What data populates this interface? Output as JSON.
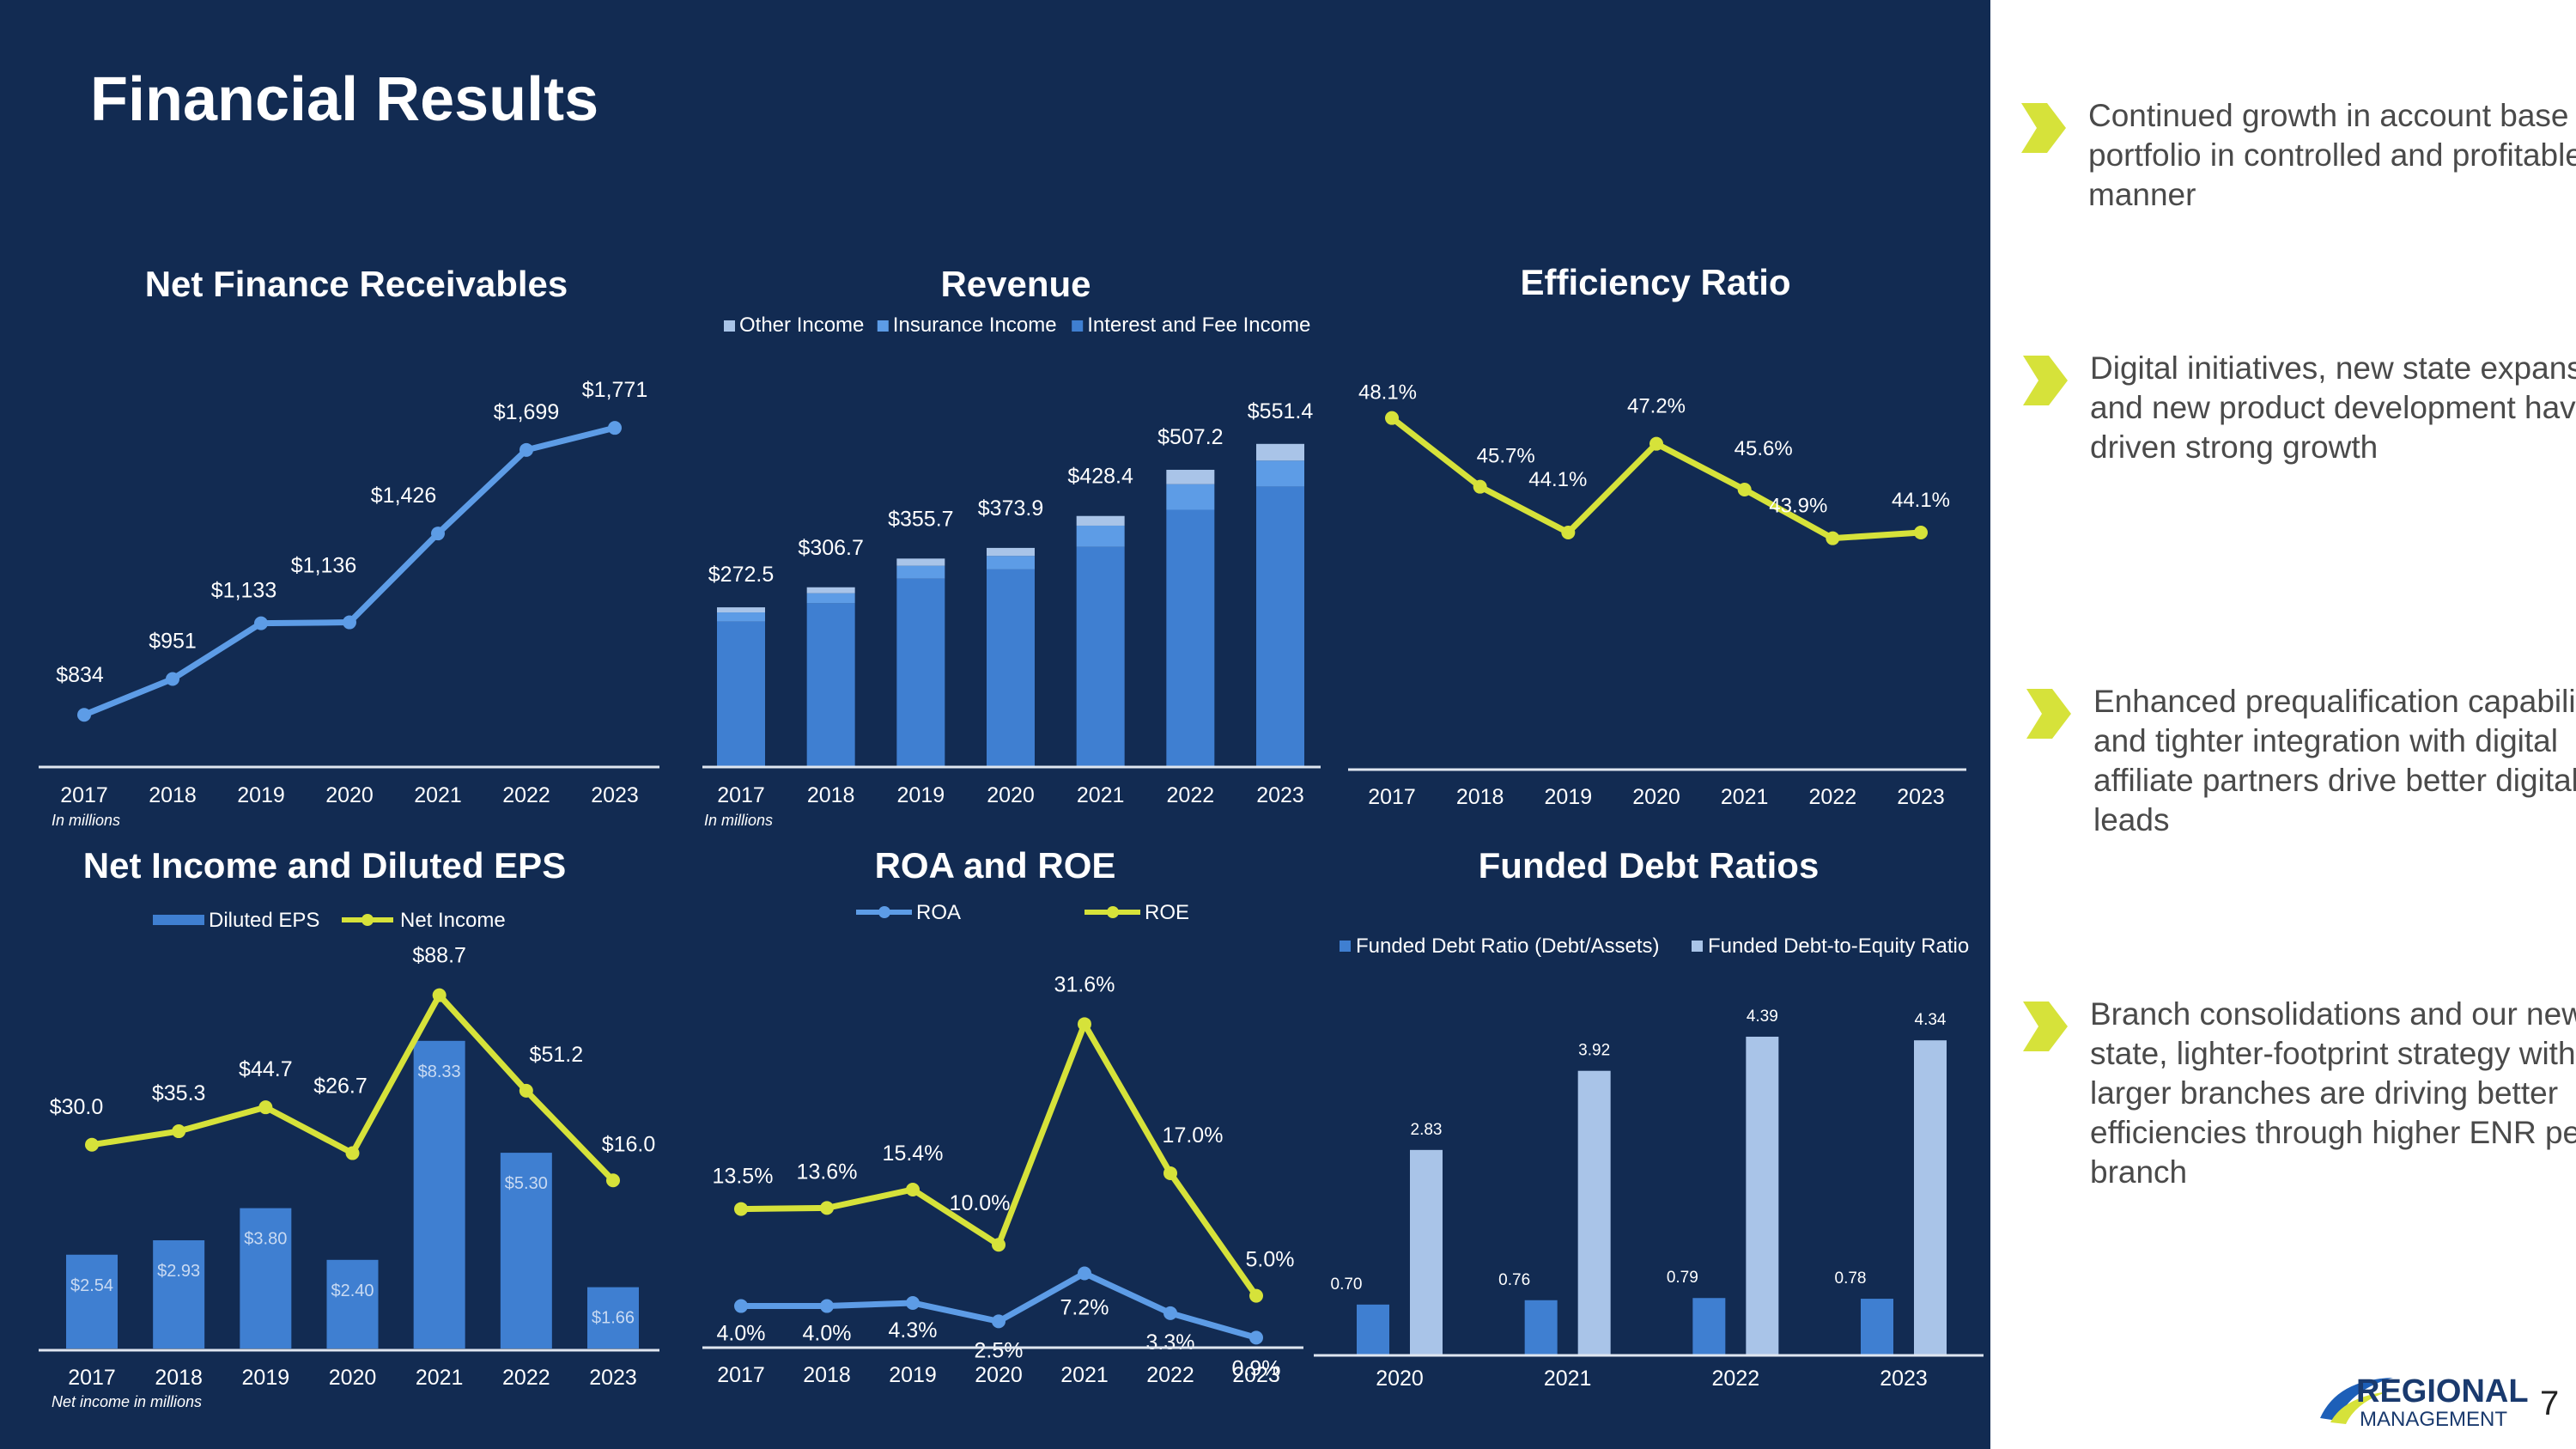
{
  "page": {
    "title": "Financial Results",
    "page_number": "7"
  },
  "colors": {
    "background": "#122b52",
    "blue": "#3f7fd1",
    "mid_blue": "#5d9ce6",
    "light_blue": "#a9c4e8",
    "yellow": "#d6e23a",
    "text": "#ffffff"
  },
  "bullets": [
    {
      "text": "Continued growth in account base and portfolio in controlled and profitable manner"
    },
    {
      "text": "Digital initiatives, new state expansion, and new product development have driven strong growth"
    },
    {
      "text": "Enhanced prequalification capabilities and tighter integration with digital affiliate partners drive better digital leads"
    },
    {
      "text": "Branch consolidations and our new-state, lighter-footprint strategy with larger branches are driving better efficiencies through higher ENR per branch"
    }
  ],
  "logo": {
    "line1": "REGIONAL",
    "line2": "MANAGEMENT"
  },
  "chart_data": [
    {
      "id": "nfr",
      "type": "line",
      "title": "Net Finance Receivables",
      "note": "In millions",
      "categories": [
        "2017",
        "2018",
        "2019",
        "2020",
        "2021",
        "2022",
        "2023"
      ],
      "values": [
        834,
        951,
        1133,
        1136,
        1426,
        1699,
        1771
      ],
      "labels": [
        "$834",
        "$951",
        "$1,133",
        "$1,136",
        "$1,426",
        "$1,699",
        "$1,771"
      ],
      "ylim": [
        700,
        1850
      ]
    },
    {
      "id": "rev",
      "type": "bar",
      "stacked": true,
      "title": "Revenue",
      "note": "In millions",
      "categories": [
        "2017",
        "2018",
        "2019",
        "2020",
        "2021",
        "2022",
        "2023"
      ],
      "totals": [
        272.5,
        306.7,
        355.7,
        373.9,
        428.4,
        507.2,
        551.4
      ],
      "total_labels": [
        "$272.5",
        "$306.7",
        "$355.7",
        "$373.9",
        "$428.4",
        "$507.2",
        "$551.4"
      ],
      "series": [
        {
          "name": "Interest and Fee Income",
          "values": [
            248.2,
            279.5,
            321.5,
            337.3,
            375.7,
            439.0,
            478.7
          ]
        },
        {
          "name": "Insurance Income",
          "values": [
            15.6,
            17.1,
            22.0,
            23.0,
            36.2,
            43.7,
            44.2
          ]
        },
        {
          "name": "Other Income",
          "values": [
            8.7,
            10.1,
            12.2,
            13.6,
            16.5,
            24.5,
            28.5
          ]
        }
      ],
      "legend_order": [
        "Other Income",
        "Insurance Income",
        "Interest and Fee Income"
      ],
      "ylim": [
        0,
        620
      ]
    },
    {
      "id": "eff",
      "type": "line",
      "title": "Efficiency Ratio",
      "categories": [
        "2017",
        "2018",
        "2019",
        "2020",
        "2021",
        "2022",
        "2023"
      ],
      "values": [
        48.1,
        45.7,
        44.1,
        47.2,
        45.6,
        43.9,
        44.1
      ],
      "labels": [
        "48.1%",
        "45.7%",
        "44.1%",
        "47.2%",
        "45.6%",
        "43.9%",
        "44.1%"
      ],
      "ylim": [
        40.5,
        49.5
      ]
    },
    {
      "id": "ni",
      "type": "bar+line",
      "title": "Net Income and Diluted EPS",
      "note": "Net income in millions",
      "categories": [
        "2017",
        "2018",
        "2019",
        "2020",
        "2021",
        "2022",
        "2023"
      ],
      "bar_series": {
        "name": "Diluted EPS",
        "values": [
          2.54,
          2.93,
          3.8,
          2.4,
          8.33,
          5.3,
          1.66
        ],
        "labels": [
          "$2.54",
          "$2.93",
          "$3.80",
          "$2.40",
          "$8.33",
          "$5.30",
          "$1.66"
        ],
        "ylim": [
          0,
          10
        ]
      },
      "line_series": {
        "name": "Net Income",
        "values": [
          30.0,
          35.3,
          44.7,
          26.7,
          88.7,
          51.2,
          16.0
        ],
        "labels": [
          "$30.0",
          "$35.3",
          "$44.7",
          "$26.7",
          "$88.7",
          "$51.2",
          "$16.0"
        ],
        "ylim": [
          -50,
          95
        ]
      }
    },
    {
      "id": "roa",
      "type": "line",
      "title": "ROA and ROE",
      "categories": [
        "2017",
        "2018",
        "2019",
        "2020",
        "2021",
        "2022",
        "2023"
      ],
      "series": [
        {
          "name": "ROA",
          "values": [
            4.0,
            4.0,
            4.3,
            2.5,
            7.2,
            3.3,
            0.9
          ],
          "labels": [
            "4.0%",
            "4.0%",
            "4.3%",
            "2.5%",
            "7.2%",
            "3.3%",
            "0.9%"
          ]
        },
        {
          "name": "ROE",
          "values": [
            13.5,
            13.6,
            15.4,
            10.0,
            31.6,
            17.0,
            5.0
          ],
          "labels": [
            "13.5%",
            "13.6%",
            "15.4%",
            "10.0%",
            "31.6%",
            "17.0%",
            "5.0%"
          ]
        }
      ],
      "ylim": [
        -1,
        36
      ]
    },
    {
      "id": "fd",
      "type": "bar",
      "title": "Funded Debt Ratios",
      "categories": [
        "2020",
        "2021",
        "2022",
        "2023"
      ],
      "series": [
        {
          "name": "Funded Debt Ratio (Debt/Assets)",
          "values": [
            0.7,
            0.76,
            0.79,
            0.78
          ],
          "labels": [
            "0.70",
            "0.76",
            "0.79",
            "0.78"
          ]
        },
        {
          "name": "Funded Debt-to-Equity Ratio",
          "values": [
            2.83,
            3.92,
            4.39,
            4.34
          ],
          "labels": [
            "2.83",
            "3.92",
            "4.39",
            "4.34"
          ]
        }
      ],
      "ylim": [
        0,
        4.65
      ]
    }
  ]
}
